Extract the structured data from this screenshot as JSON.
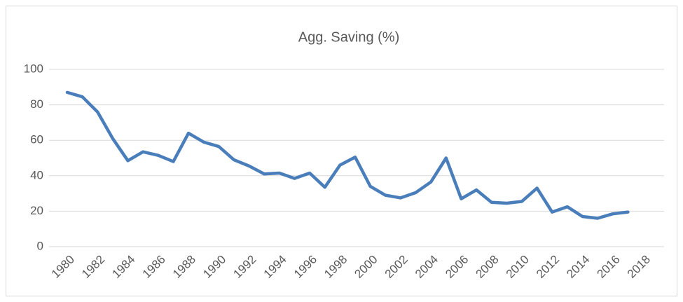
{
  "chart_data": {
    "type": "line",
    "title": "Agg. Saving (%)",
    "x": [
      1980,
      1981,
      1982,
      1983,
      1984,
      1985,
      1986,
      1987,
      1988,
      1989,
      1990,
      1991,
      1992,
      1993,
      1994,
      1995,
      1996,
      1997,
      1998,
      1999,
      2000,
      2001,
      2002,
      2003,
      2004,
      2005,
      2006,
      2007,
      2008,
      2009,
      2010,
      2011,
      2012,
      2013,
      2014,
      2015,
      2016,
      2017
    ],
    "series": [
      {
        "name": "Agg. Saving (%)",
        "color": "#4a7ebb",
        "values": [
          87,
          84.5,
          76,
          61,
          48.5,
          53.5,
          51.5,
          48,
          64,
          59,
          56.5,
          49,
          45.5,
          41,
          41.5,
          38.5,
          41.5,
          33.5,
          46,
          50.5,
          34,
          29,
          27.5,
          30.5,
          36.5,
          50,
          27,
          32,
          25,
          24.5,
          25.5,
          33,
          19.5,
          22.5,
          17,
          16,
          18.5,
          19.5
        ]
      }
    ],
    "xlim": [
      1980,
      2018
    ],
    "xticks": [
      1980,
      1982,
      1984,
      1986,
      1988,
      1990,
      1992,
      1994,
      1996,
      1998,
      2000,
      2002,
      2004,
      2006,
      2008,
      2010,
      2012,
      2014,
      2016,
      2018
    ],
    "ylim": [
      0,
      100
    ],
    "yticks": [
      0,
      20,
      40,
      60,
      80,
      100
    ],
    "grid": true
  }
}
